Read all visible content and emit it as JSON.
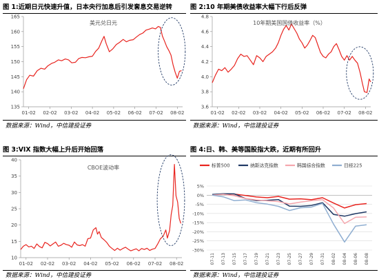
{
  "panels": [
    {
      "header": "图 1:近期日元快速升值，日本央行加息后引发套息交易逆转",
      "source": "数据来源：Wind，中信建投证券"
    },
    {
      "header": "图 2:10 年期美债收益率大幅下行后反弹",
      "source": "数据来源：Wind，中信建投证券"
    },
    {
      "header": "图 3:VIX 指数大幅上升后开始回落",
      "source": "数据来源：Wind，中信建投证券"
    },
    {
      "header": "图 4:日、韩、美等国股指大跌，近期有所回升",
      "source": "数据来源：Wind，中信建投证券"
    }
  ],
  "chart_data": [
    {
      "type": "line",
      "title": "美元兑日元",
      "ylim": [
        135,
        165
      ],
      "yticks": [
        135,
        140,
        145,
        150,
        155,
        160,
        165
      ],
      "xlim": [
        0,
        30
      ],
      "xticks": [
        {
          "x": 1,
          "label": "01-02"
        },
        {
          "x": 5,
          "label": "02-02"
        },
        {
          "x": 9,
          "label": "03-02"
        },
        {
          "x": 13,
          "label": "04-02"
        },
        {
          "x": 17,
          "label": "05-02"
        },
        {
          "x": 21,
          "label": "06-02"
        },
        {
          "x": 25,
          "label": "07-02"
        },
        {
          "x": 29,
          "label": "08-02"
        }
      ],
      "highlight_ellipse": true,
      "series": [
        {
          "color": "#e8231e",
          "points": [
            [
              0,
              141
            ],
            [
              0.6,
              144
            ],
            [
              1.2,
              145.5
            ],
            [
              1.9,
              145.2
            ],
            [
              2.6,
              147
            ],
            [
              3.3,
              147.8
            ],
            [
              4,
              147.5
            ],
            [
              4.6,
              148.6
            ],
            [
              5.3,
              149.4
            ],
            [
              5.9,
              149.8
            ],
            [
              6.6,
              150.6
            ],
            [
              7.2,
              150.3
            ],
            [
              7.9,
              150.9
            ],
            [
              8.5,
              150.6
            ],
            [
              9.1,
              149.6
            ],
            [
              9.8,
              149.8
            ],
            [
              10.4,
              151
            ],
            [
              11,
              151.4
            ],
            [
              11.7,
              151.3
            ],
            [
              12.3,
              151.6
            ],
            [
              13,
              151.8
            ],
            [
              13.6,
              153.4
            ],
            [
              14.2,
              154.5
            ],
            [
              14.8,
              157
            ],
            [
              15.2,
              158.4
            ],
            [
              15.6,
              156
            ],
            [
              16.2,
              153.3
            ],
            [
              16.8,
              154.2
            ],
            [
              17.5,
              155.7
            ],
            [
              18.1,
              156.4
            ],
            [
              18.8,
              157.4
            ],
            [
              19.4,
              156.6
            ],
            [
              20,
              157.1
            ],
            [
              20.7,
              157.3
            ],
            [
              21.3,
              158.2
            ],
            [
              21.9,
              159
            ],
            [
              22.5,
              159.5
            ],
            [
              23.1,
              160.5
            ],
            [
              23.7,
              160.8
            ],
            [
              24.3,
              161.2
            ],
            [
              24.9,
              160.9
            ],
            [
              25.4,
              161.7
            ],
            [
              25.8,
              161.4
            ],
            [
              26.2,
              158.5
            ],
            [
              26.6,
              156.8
            ],
            [
              27,
              155
            ],
            [
              27.4,
              153.7
            ],
            [
              27.8,
              152.2
            ],
            [
              28.2,
              149
            ],
            [
              28.6,
              146.5
            ],
            [
              29,
              144.5
            ],
            [
              29.4,
              146.8
            ],
            [
              29.8,
              147
            ]
          ]
        }
      ]
    },
    {
      "type": "line",
      "title": "10年期美国国债收益率（%）",
      "ylim": [
        3.6,
        4.8
      ],
      "yticks": [
        3.6,
        3.8,
        4.0,
        4.2,
        4.4,
        4.6,
        4.8
      ],
      "xlim": [
        0,
        30
      ],
      "xticks": [
        {
          "x": 1,
          "label": "01-02"
        },
        {
          "x": 5,
          "label": "02-02"
        },
        {
          "x": 9,
          "label": "03-02"
        },
        {
          "x": 13,
          "label": "04-02"
        },
        {
          "x": 17,
          "label": "05-02"
        },
        {
          "x": 21,
          "label": "06-02"
        },
        {
          "x": 25,
          "label": "07-02"
        },
        {
          "x": 29,
          "label": "08-02"
        }
      ],
      "highlight_ellipse": true,
      "series": [
        {
          "color": "#e8231e",
          "points": [
            [
              0,
              3.92
            ],
            [
              0.6,
              4.02
            ],
            [
              1.2,
              4.1
            ],
            [
              1.8,
              4.08
            ],
            [
              2.4,
              4.12
            ],
            [
              3,
              4.06
            ],
            [
              3.6,
              4.1
            ],
            [
              4.2,
              4.15
            ],
            [
              4.8,
              4.24
            ],
            [
              5.4,
              4.3
            ],
            [
              6,
              4.27
            ],
            [
              6.6,
              4.28
            ],
            [
              7.2,
              4.22
            ],
            [
              7.8,
              4.16
            ],
            [
              8.4,
              4.28
            ],
            [
              9,
              4.25
            ],
            [
              9.6,
              4.2
            ],
            [
              10.2,
              4.27
            ],
            [
              10.8,
              4.3
            ],
            [
              11.4,
              4.33
            ],
            [
              12,
              4.38
            ],
            [
              12.5,
              4.45
            ],
            [
              13,
              4.55
            ],
            [
              13.5,
              4.63
            ],
            [
              14,
              4.68
            ],
            [
              14.5,
              4.62
            ],
            [
              15,
              4.7
            ],
            [
              15.5,
              4.64
            ],
            [
              16,
              4.58
            ],
            [
              16.5,
              4.5
            ],
            [
              17,
              4.45
            ],
            [
              17.5,
              4.38
            ],
            [
              18,
              4.42
            ],
            [
              18.5,
              4.48
            ],
            [
              19,
              4.55
            ],
            [
              19.5,
              4.52
            ],
            [
              20,
              4.42
            ],
            [
              20.5,
              4.32
            ],
            [
              21,
              4.27
            ],
            [
              21.5,
              4.25
            ],
            [
              22,
              4.3
            ],
            [
              22.5,
              4.33
            ],
            [
              23,
              4.4
            ],
            [
              23.5,
              4.44
            ],
            [
              24,
              4.36
            ],
            [
              24.5,
              4.27
            ],
            [
              25,
              4.22
            ],
            [
              25.5,
              4.28
            ],
            [
              26,
              4.22
            ],
            [
              26.5,
              4.27
            ],
            [
              27,
              4.22
            ],
            [
              27.5,
              4.18
            ],
            [
              28,
              4.05
            ],
            [
              28.4,
              3.92
            ],
            [
              28.8,
              3.8
            ],
            [
              29.3,
              3.79
            ],
            [
              29.7,
              3.97
            ],
            [
              30,
              3.93
            ]
          ]
        }
      ]
    },
    {
      "type": "line",
      "title": "CBOE波动率",
      "ylim": [
        10,
        40
      ],
      "yticks": [
        10,
        15,
        20,
        25,
        30,
        35,
        40
      ],
      "xlim": [
        0,
        30
      ],
      "xticks": [
        {
          "x": 1,
          "label": "01-02"
        },
        {
          "x": 5,
          "label": "02-02"
        },
        {
          "x": 9,
          "label": "03-02"
        },
        {
          "x": 13,
          "label": "04-02"
        },
        {
          "x": 17,
          "label": "05-02"
        },
        {
          "x": 21,
          "label": "06-02"
        },
        {
          "x": 25,
          "label": "07-02"
        },
        {
          "x": 29,
          "label": "08-02"
        }
      ],
      "highlight_ellipse": true,
      "series": [
        {
          "color": "#e8231e",
          "points": [
            [
              0,
              12.5
            ],
            [
              0.5,
              13.5
            ],
            [
              1,
              14
            ],
            [
              1.5,
              13.3
            ],
            [
              2,
              13.5
            ],
            [
              2.5,
              12.8
            ],
            [
              3,
              14.2
            ],
            [
              3.5,
              13.4
            ],
            [
              4,
              13
            ],
            [
              4.5,
              14.7
            ],
            [
              5,
              14.3
            ],
            [
              5.5,
              13.6
            ],
            [
              6,
              14.2
            ],
            [
              6.5,
              14.8
            ],
            [
              7,
              13.5
            ],
            [
              7.5,
              13.8
            ],
            [
              8,
              14.4
            ],
            [
              8.5,
              14
            ],
            [
              9,
              13.8
            ],
            [
              9.5,
              13.2
            ],
            [
              10,
              14.8
            ],
            [
              10.5,
              13.9
            ],
            [
              11,
              13.7
            ],
            [
              11.5,
              14
            ],
            [
              12,
              13.5
            ],
            [
              12.5,
              15.8
            ],
            [
              13,
              16
            ],
            [
              13.5,
              18.5
            ],
            [
              14,
              19.2
            ],
            [
              14.3,
              17.2
            ],
            [
              14.6,
              18
            ],
            [
              15,
              16.2
            ],
            [
              15.5,
              15.5
            ],
            [
              16,
              14.7
            ],
            [
              16.5,
              13.5
            ],
            [
              17,
              12.8
            ],
            [
              17.5,
              12.2
            ],
            [
              18,
              12.9
            ],
            [
              18.5,
              12.3
            ],
            [
              19,
              12.8
            ],
            [
              19.5,
              13.2
            ],
            [
              20,
              12.6
            ],
            [
              20.5,
              12.1
            ],
            [
              21,
              12.4
            ],
            [
              21.5,
              12.7
            ],
            [
              22,
              12.1
            ],
            [
              22.5,
              12.8
            ],
            [
              23,
              12.5
            ],
            [
              23.5,
              12.9
            ],
            [
              24,
              12.2
            ],
            [
              24.5,
              12.6
            ],
            [
              25,
              12.8
            ],
            [
              25.5,
              14.2
            ],
            [
              26,
              15.8
            ],
            [
              26.5,
              16.5
            ],
            [
              27,
              18.5
            ],
            [
              27.3,
              16
            ],
            [
              27.7,
              18.3
            ],
            [
              28,
              23.2
            ],
            [
              28.3,
              26
            ],
            [
              28.6,
              38.6
            ],
            [
              28.9,
              29
            ],
            [
              29.2,
              27
            ],
            [
              29.5,
              22
            ],
            [
              29.8,
              20.5
            ]
          ]
        }
      ]
    },
    {
      "type": "line",
      "ylim": [
        -30,
        5
      ],
      "yticks": [
        5,
        0,
        -5,
        -10,
        -15,
        -20,
        -25,
        -30
      ],
      "ytick_labels": [
        "5%",
        "0%",
        "-5%",
        "-10%",
        "-15%",
        "-20%",
        "-25%",
        "-30%"
      ],
      "categories": [
        "07-11",
        "07-13",
        "07-15",
        "07-17",
        "07-19",
        "07-21",
        "07-23",
        "07-25",
        "07-27",
        "07-29",
        "07-31",
        "08-02",
        "08-04",
        "08-06",
        "08-08"
      ],
      "series": [
        {
          "name": "标普500",
          "color": "#e8231e",
          "values": [
            0.2,
            0.6,
            0.6,
            -0.2,
            -1,
            -1.4,
            -0.7,
            -2.2,
            -2,
            -2.5,
            -1.4,
            -4.3,
            -7,
            -5.2,
            -4.6
          ]
        },
        {
          "name": "纳斯达克指数",
          "color": "#1f3864",
          "values": [
            0.4,
            0.8,
            0.7,
            -1.8,
            -3,
            -2.8,
            -2.4,
            -6,
            -6.1,
            -5.6,
            -4.1,
            -10.5,
            -11.5,
            -10.1,
            -9.1
          ]
        },
        {
          "name": "韩国综合指数",
          "color": "#f5a6ad",
          "values": [
            0,
            0.5,
            -0.3,
            -1.8,
            -2.6,
            -3.1,
            -3.5,
            -4.8,
            -3.8,
            -3,
            -2.5,
            -7,
            -15.5,
            -12.1,
            -11.9
          ]
        },
        {
          "name": "日经225",
          "color": "#8faed1",
          "values": [
            0,
            -0.9,
            -3,
            -2.6,
            -4.1,
            -4.9,
            -6.1,
            -8.4,
            -6.9,
            -6.5,
            -4.5,
            -15.8,
            -25.6,
            -16.9,
            -16.2
          ]
        }
      ]
    }
  ]
}
